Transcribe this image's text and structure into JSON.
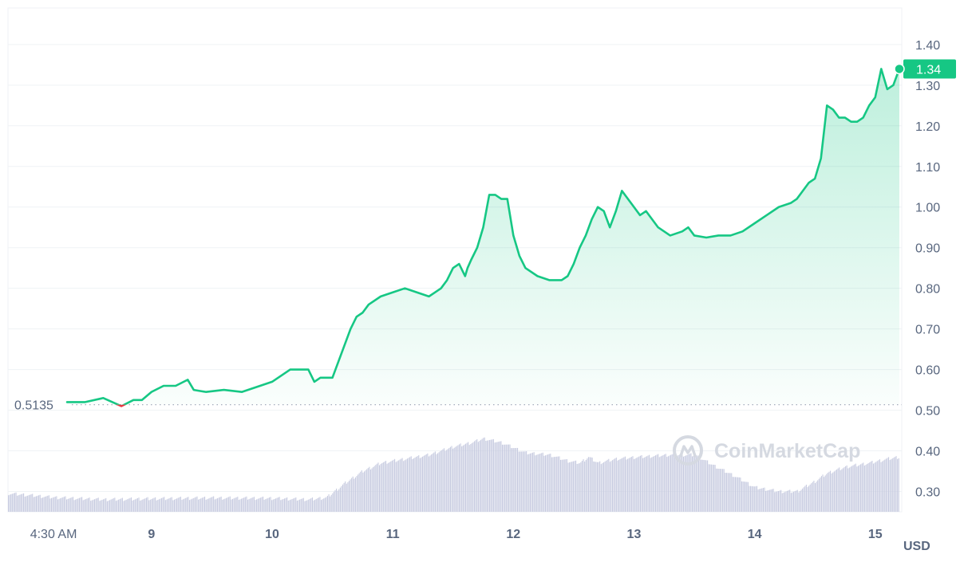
{
  "chart_data": {
    "type": "area",
    "title": "",
    "xlabel": "",
    "ylabel": "",
    "currency_label": "USD",
    "ylim": [
      0.25,
      1.49
    ],
    "y_ticks": [
      {
        "value": 0.3,
        "label": "0.30"
      },
      {
        "value": 0.4,
        "label": "0.40"
      },
      {
        "value": 0.5,
        "label": "0.50"
      },
      {
        "value": 0.6,
        "label": "0.60"
      },
      {
        "value": 0.7,
        "label": "0.70"
      },
      {
        "value": 0.8,
        "label": "0.80"
      },
      {
        "value": 0.9,
        "label": "0.90"
      },
      {
        "value": 1.0,
        "label": "1.00"
      },
      {
        "value": 1.1,
        "label": "1.10"
      },
      {
        "value": 1.2,
        "label": "1.20"
      },
      {
        "value": 1.3,
        "label": "1.30"
      },
      {
        "value": 1.4,
        "label": "1.40"
      }
    ],
    "x_range_days": [
      7.81,
      15.22
    ],
    "x_ticks": [
      {
        "day": 8.1875,
        "label": "4:30 AM"
      },
      {
        "day": 9,
        "label": "9"
      },
      {
        "day": 10,
        "label": "10"
      },
      {
        "day": 11,
        "label": "11"
      },
      {
        "day": 12,
        "label": "12"
      },
      {
        "day": 13,
        "label": "13"
      },
      {
        "day": 14,
        "label": "14"
      },
      {
        "day": 15,
        "label": "15"
      }
    ],
    "baseline": {
      "value": 0.5135,
      "label": "0.5135"
    },
    "current_price": {
      "value": 1.34,
      "label": "1.34"
    },
    "colors": {
      "up": "#16c784",
      "down": "#ea3943",
      "volume": "#c7cbe0",
      "grid": "#eff2f5",
      "axis_text": "#58667e"
    },
    "price_series": {
      "name": "",
      "day": [
        8.3,
        8.45,
        8.6,
        8.75,
        8.85,
        8.92,
        9.0,
        9.1,
        9.2,
        9.3,
        9.35,
        9.45,
        9.6,
        9.75,
        9.9,
        10.0,
        10.1,
        10.15,
        10.2,
        10.25,
        10.3,
        10.35,
        10.4,
        10.45,
        10.5,
        10.55,
        10.6,
        10.65,
        10.7,
        10.75,
        10.8,
        10.9,
        11.0,
        11.1,
        11.2,
        11.3,
        11.35,
        11.4,
        11.45,
        11.5,
        11.55,
        11.6,
        11.62,
        11.65,
        11.7,
        11.75,
        11.8,
        11.85,
        11.9,
        11.95,
        12.0,
        12.05,
        12.1,
        12.2,
        12.3,
        12.4,
        12.45,
        12.5,
        12.55,
        12.6,
        12.65,
        12.7,
        12.75,
        12.8,
        12.85,
        12.9,
        13.0,
        13.05,
        13.1,
        13.2,
        13.3,
        13.4,
        13.45,
        13.5,
        13.6,
        13.7,
        13.8,
        13.9,
        14.0,
        14.1,
        14.2,
        14.3,
        14.35,
        14.4,
        14.45,
        14.5,
        14.55,
        14.6,
        14.65,
        14.7,
        14.75,
        14.8,
        14.85,
        14.9,
        14.95,
        15.0,
        15.05,
        15.1,
        15.15,
        15.2
      ],
      "values": [
        0.52,
        0.52,
        0.53,
        0.51,
        0.525,
        0.525,
        0.545,
        0.56,
        0.56,
        0.575,
        0.55,
        0.545,
        0.55,
        0.545,
        0.56,
        0.57,
        0.59,
        0.6,
        0.6,
        0.6,
        0.6,
        0.57,
        0.58,
        0.58,
        0.58,
        0.62,
        0.66,
        0.7,
        0.73,
        0.74,
        0.76,
        0.78,
        0.79,
        0.8,
        0.79,
        0.78,
        0.79,
        0.8,
        0.82,
        0.85,
        0.86,
        0.83,
        0.85,
        0.87,
        0.9,
        0.95,
        1.03,
        1.03,
        1.02,
        1.02,
        0.93,
        0.88,
        0.85,
        0.83,
        0.82,
        0.82,
        0.83,
        0.86,
        0.9,
        0.93,
        0.97,
        1.0,
        0.99,
        0.95,
        0.99,
        1.04,
        1.0,
        0.98,
        0.99,
        0.95,
        0.93,
        0.94,
        0.95,
        0.93,
        0.925,
        0.93,
        0.93,
        0.94,
        0.96,
        0.98,
        1.0,
        1.01,
        1.02,
        1.04,
        1.06,
        1.07,
        1.12,
        1.25,
        1.24,
        1.22,
        1.22,
        1.21,
        1.21,
        1.22,
        1.25,
        1.27,
        1.34,
        1.29,
        1.3,
        1.34
      ]
    },
    "volume_series": {
      "name": "",
      "day": [
        7.81,
        8.2,
        8.6,
        9.0,
        9.5,
        10.0,
        10.3,
        10.45,
        10.6,
        10.75,
        10.9,
        11.1,
        11.3,
        11.5,
        11.65,
        11.75,
        11.9,
        12.1,
        12.3,
        12.45,
        12.55,
        12.62,
        12.7,
        12.85,
        13.05,
        13.3,
        13.5,
        13.65,
        13.85,
        14.0,
        14.2,
        14.35,
        14.5,
        14.6,
        14.75,
        14.95,
        15.1,
        15.2
      ],
      "values": [
        0.295,
        0.285,
        0.28,
        0.282,
        0.284,
        0.283,
        0.28,
        0.285,
        0.32,
        0.35,
        0.37,
        0.38,
        0.39,
        0.41,
        0.42,
        0.43,
        0.42,
        0.395,
        0.39,
        0.375,
        0.37,
        0.385,
        0.37,
        0.38,
        0.385,
        0.39,
        0.39,
        0.365,
        0.335,
        0.31,
        0.3,
        0.3,
        0.325,
        0.345,
        0.36,
        0.37,
        0.38,
        0.385
      ]
    }
  },
  "watermark": {
    "text": "CoinMarketCap",
    "icon": "coinmarketcap-logo-icon"
  }
}
